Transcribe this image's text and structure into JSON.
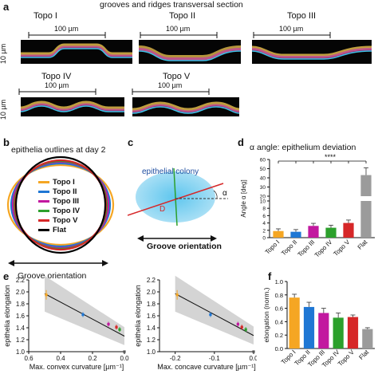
{
  "panel_a": {
    "letter": "a",
    "title": "grooves and ridges transversal section",
    "scale_horizontal": "100 µm",
    "scale_vertical": "10 µm",
    "topos": [
      "Topo I",
      "Topo II",
      "Topo III",
      "Topo IV",
      "Topo V"
    ]
  },
  "panel_b": {
    "letter": "b",
    "title": "epithelia outlines at day 2",
    "legend": [
      {
        "label": "Topo I",
        "color": "#f5a623"
      },
      {
        "label": "Topo II",
        "color": "#1f77d4"
      },
      {
        "label": "Topo III",
        "color": "#c2189f"
      },
      {
        "label": "Topo IV",
        "color": "#2ca02c"
      },
      {
        "label": "Topo V",
        "color": "#d62728"
      },
      {
        "label": "Flat",
        "color": "#000000"
      }
    ],
    "axis_caption": "Groove orientation"
  },
  "panel_c": {
    "letter": "c",
    "colony_label": "epithelial colony",
    "alpha_label": "α",
    "d_label": "D",
    "axis_caption": "Groove orientation"
  },
  "panel_d": {
    "letter": "d",
    "title": "α angle: epithelium deviation",
    "significance": "****",
    "chart_data": {
      "type": "bar",
      "categories": [
        "Topo I",
        "Topo II",
        "Topo III",
        "Topo IV",
        "Topo V",
        "Flat"
      ],
      "values": [
        1.8,
        1.6,
        3.2,
        2.7,
        4.0,
        43
      ],
      "errors": [
        0.6,
        0.6,
        0.7,
        0.7,
        0.8,
        8
      ],
      "colors": [
        "#f5a623",
        "#1f77d4",
        "#c2189f",
        "#2ca02c",
        "#d62728",
        "#9b9b9b"
      ],
      "ylabel": "Angle α [deg]",
      "yticks": [
        0,
        2,
        4,
        6,
        8,
        10,
        20,
        30,
        40,
        50,
        60
      ],
      "ylim": [
        0,
        60
      ],
      "axis_break": [
        10,
        20
      ]
    }
  },
  "panel_e": {
    "letter": "e",
    "chart_data": [
      {
        "type": "scatter",
        "xlabel": "Max. convex curvature [µm⁻¹]",
        "ylabel": "epithelia elongation",
        "xticks": [
          0.6,
          0.4,
          0.2,
          0.0
        ],
        "xtick_labels": [
          "0.6",
          "0.4",
          "0.2",
          "0.0"
        ],
        "yticks": [
          1.0,
          1.2,
          1.4,
          1.6,
          1.8,
          2.0,
          2.2
        ],
        "xlim": [
          0.6,
          0.0
        ],
        "ylim": [
          1.0,
          2.2
        ],
        "points": [
          {
            "x": 0.49,
            "y": 1.95,
            "err": 0.08,
            "color": "#f5a623"
          },
          {
            "x": 0.26,
            "y": 1.62,
            "err": 0.04,
            "color": "#1f77d4"
          },
          {
            "x": 0.1,
            "y": 1.46,
            "err": 0.04,
            "color": "#c2189f"
          },
          {
            "x": 0.05,
            "y": 1.41,
            "err": 0.04,
            "color": "#d62728"
          },
          {
            "x": 0.03,
            "y": 1.37,
            "err": 0.04,
            "color": "#2ca02c"
          },
          {
            "x": 0.0,
            "y": 1.0,
            "err": 0.02,
            "color": "#555555"
          }
        ],
        "fit": [
          [
            0.5,
            1.97
          ],
          [
            0.0,
            1.26
          ]
        ]
      },
      {
        "type": "scatter",
        "xlabel": "Max. concave curvature [µm⁻¹]",
        "ylabel": "epithelia elongation",
        "xticks": [
          -0.2,
          -0.1,
          0.0
        ],
        "xtick_labels": [
          "-0.2",
          "-0.1",
          "0.0"
        ],
        "yticks": [
          1.0,
          1.2,
          1.4,
          1.6,
          1.8,
          2.0,
          2.2
        ],
        "xlim": [
          -0.24,
          0.0
        ],
        "ylim": [
          1.0,
          2.2
        ],
        "points": [
          {
            "x": -0.195,
            "y": 1.95,
            "err": 0.08,
            "color": "#f5a623"
          },
          {
            "x": -0.11,
            "y": 1.62,
            "err": 0.04,
            "color": "#1f77d4"
          },
          {
            "x": -0.04,
            "y": 1.46,
            "err": 0.04,
            "color": "#c2189f"
          },
          {
            "x": -0.03,
            "y": 1.41,
            "err": 0.04,
            "color": "#d62728"
          },
          {
            "x": -0.02,
            "y": 1.37,
            "err": 0.04,
            "color": "#2ca02c"
          },
          {
            "x": 0.0,
            "y": 1.0,
            "err": 0.02,
            "color": "#555555"
          }
        ],
        "fit": [
          [
            -0.2,
            1.97
          ],
          [
            0.0,
            1.27
          ]
        ]
      }
    ]
  },
  "panel_f": {
    "letter": "f",
    "chart_data": {
      "type": "bar",
      "categories": [
        "Topo I",
        "Topo II",
        "Topo III",
        "Topo IV",
        "Topo V",
        "Flat"
      ],
      "values": [
        0.76,
        0.62,
        0.53,
        0.46,
        0.47,
        0.29
      ],
      "errors": [
        0.05,
        0.07,
        0.07,
        0.07,
        0.03,
        0.02
      ],
      "colors": [
        "#f5a623",
        "#1f77d4",
        "#c2189f",
        "#2ca02c",
        "#d62728",
        "#9b9b9b"
      ],
      "ylabel": "elongation (norm.)",
      "yticks": [
        0.0,
        0.2,
        0.4,
        0.6,
        0.8,
        1.0
      ],
      "ylim": [
        0,
        1.0
      ]
    }
  }
}
